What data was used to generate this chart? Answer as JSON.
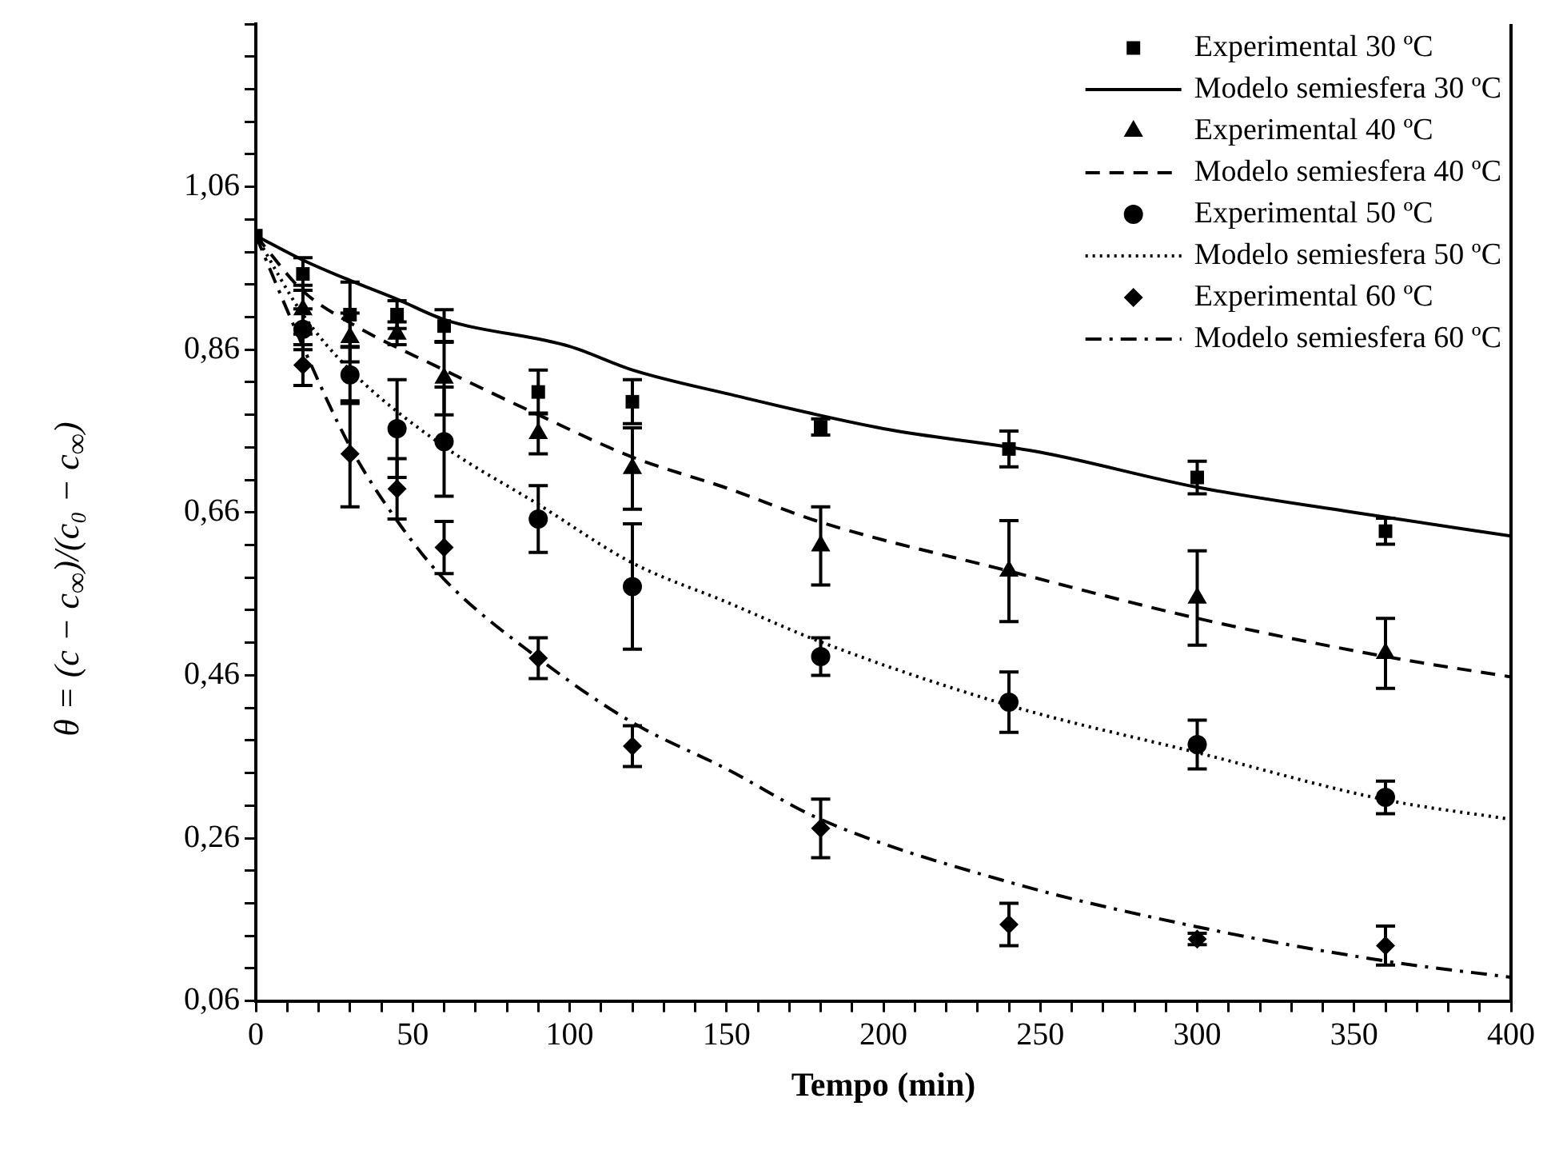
{
  "chart_data": {
    "type": "scatter",
    "xlabel": "Tempo (min)",
    "ylabel": "θ = (c − c$_{∞}$)/(c₀ − c$_{∞}$)",
    "xlim": [
      0,
      400
    ],
    "ylim": [
      0.06,
      1.26
    ],
    "xticks": [
      0,
      {
        "value": 10,
        "label": null
      },
      {
        "value": 20,
        "label": null
      },
      {
        "value": 30,
        "label": null
      },
      {
        "value": 40,
        "label": null
      },
      50,
      {
        "value": 60,
        "label": null
      },
      {
        "value": 70,
        "label": null
      },
      {
        "value": 80,
        "label": null
      },
      {
        "value": 90,
        "label": null
      },
      100,
      {
        "value": 110,
        "label": null
      },
      {
        "value": 120,
        "label": null
      },
      {
        "value": 130,
        "label": null
      },
      {
        "value": 140,
        "label": null
      },
      150,
      {
        "value": 160,
        "label": null
      },
      {
        "value": 170,
        "label": null
      },
      {
        "value": 180,
        "label": null
      },
      {
        "value": 190,
        "label": null
      },
      200,
      {
        "value": 210,
        "label": null
      },
      {
        "value": 220,
        "label": null
      },
      {
        "value": 230,
        "label": null
      },
      {
        "value": 240,
        "label": null
      },
      250,
      {
        "value": 260,
        "label": null
      },
      {
        "value": 270,
        "label": null
      },
      {
        "value": 280,
        "label": null
      },
      {
        "value": 290,
        "label": null
      },
      300,
      {
        "value": 310,
        "label": null
      },
      {
        "value": 320,
        "label": null
      },
      {
        "value": 330,
        "label": null
      },
      {
        "value": 340,
        "label": null
      },
      350,
      {
        "value": 360,
        "label": null
      },
      {
        "value": 370,
        "label": null
      },
      {
        "value": 380,
        "label": null
      },
      {
        "value": 390,
        "label": null
      },
      400
    ],
    "yticks": [
      {
        "value": 0.06,
        "label": "0,06"
      },
      {
        "value": 0.1,
        "label": null
      },
      {
        "value": 0.14,
        "label": null
      },
      {
        "value": 0.18,
        "label": null
      },
      {
        "value": 0.22,
        "label": null
      },
      {
        "value": 0.26,
        "label": "0,26"
      },
      {
        "value": 0.3,
        "label": null
      },
      {
        "value": 0.34,
        "label": null
      },
      {
        "value": 0.38,
        "label": null
      },
      {
        "value": 0.42,
        "label": null
      },
      {
        "value": 0.46,
        "label": "0,46"
      },
      {
        "value": 0.5,
        "label": null
      },
      {
        "value": 0.54,
        "label": null
      },
      {
        "value": 0.58,
        "label": null
      },
      {
        "value": 0.62,
        "label": null
      },
      {
        "value": 0.66,
        "label": "0,66"
      },
      {
        "value": 0.7,
        "label": null
      },
      {
        "value": 0.74,
        "label": null
      },
      {
        "value": 0.78,
        "label": null
      },
      {
        "value": 0.82,
        "label": null
      },
      {
        "value": 0.86,
        "label": "0,86"
      },
      {
        "value": 0.9,
        "label": null
      },
      {
        "value": 0.94,
        "label": null
      },
      {
        "value": 0.98,
        "label": null
      },
      {
        "value": 1.02,
        "label": null
      },
      {
        "value": 1.06,
        "label": "1,06"
      },
      {
        "value": 1.1,
        "label": null
      },
      {
        "value": 1.14,
        "label": null
      },
      {
        "value": 1.18,
        "label": null
      },
      {
        "value": 1.22,
        "label": null
      },
      {
        "value": 1.26,
        "label": null
      }
    ],
    "grid": false,
    "legend": "top right",
    "series": [
      {
        "name": "Experimental 30 ºC",
        "marker": "square",
        "color": "#000000",
        "x": [
          0,
          15,
          30,
          45,
          60,
          90,
          120,
          180,
          240,
          300,
          360
        ],
        "values": [
          1.0,
          0.953,
          0.903,
          0.903,
          0.889,
          0.808,
          0.796,
          0.765,
          0.738,
          0.703,
          0.637
        ],
        "errors": [
          null,
          0.02,
          0.04,
          0.017,
          0.02,
          0.027,
          0.027,
          0.01,
          0.022,
          0.02,
          0.016
        ]
      },
      {
        "name": "Modelo semiesfera 30 ºC",
        "type": "line",
        "marker": "none",
        "line_style": "solid",
        "color": "#000000",
        "x": [
          0,
          15,
          30,
          45,
          60,
          100,
          120,
          150,
          200,
          250,
          300,
          350,
          400
        ],
        "values": [
          1.0,
          0.97,
          0.945,
          0.922,
          0.897,
          0.864,
          0.835,
          0.806,
          0.763,
          0.734,
          0.691,
          0.66,
          0.631
        ]
      },
      {
        "name": "Experimental 40 ºC",
        "marker": "triangle",
        "color": "#000000",
        "x": [
          15,
          30,
          45,
          60,
          90,
          120,
          180,
          240,
          300,
          360
        ],
        "values": [
          0.909,
          0.875,
          0.879,
          0.825,
          0.757,
          0.714,
          0.619,
          0.588,
          0.555,
          0.487
        ],
        "errors": [
          0.03,
          0.03,
          [
            0.866,
            0.894
          ],
          0.045,
          0.025,
          0.05,
          0.048,
          0.062,
          0.058,
          0.043
        ]
      },
      {
        "name": "Modelo semiesfera 40 ºC",
        "type": "line",
        "marker": "none",
        "line_style": "dashed",
        "color": "#000000",
        "x": [
          0,
          15,
          30,
          60,
          90,
          120,
          150,
          180,
          240,
          300,
          360,
          400
        ],
        "values": [
          1.0,
          0.932,
          0.893,
          0.835,
          0.78,
          0.728,
          0.69,
          0.648,
          0.588,
          0.53,
          0.483,
          0.458
        ]
      },
      {
        "name": "Experimental 50 ºC",
        "marker": "circle",
        "color": "#000000",
        "x": [
          15,
          30,
          45,
          60,
          90,
          120,
          180,
          240,
          300,
          360
        ],
        "values": [
          0.885,
          0.829,
          0.763,
          0.747,
          0.652,
          0.569,
          0.483,
          0.427,
          0.375,
          0.31
        ],
        "errors": [
          0.025,
          0.035,
          0.06,
          0.067,
          0.041,
          0.077,
          0.023,
          0.037,
          0.03,
          0.02
        ]
      },
      {
        "name": "Modelo semiesfera 50 ºC",
        "type": "line",
        "marker": "none",
        "line_style": "dotted",
        "color": "#000000",
        "x": [
          0,
          15,
          30,
          60,
          90,
          120,
          150,
          180,
          240,
          300,
          360,
          400
        ],
        "values": [
          1.0,
          0.903,
          0.835,
          0.741,
          0.67,
          0.598,
          0.55,
          0.501,
          0.423,
          0.365,
          0.307,
          0.283
        ]
      },
      {
        "name": "Experimental 60 ºC",
        "marker": "diamond",
        "color": "#000000",
        "x": [
          15,
          30,
          45,
          60,
          90,
          120,
          180,
          240,
          300,
          360
        ],
        "values": [
          0.841,
          0.732,
          0.689,
          0.617,
          0.481,
          0.373,
          0.272,
          0.154,
          0.136,
          0.128
        ],
        "errors": [
          0.025,
          0.065,
          0.037,
          0.032,
          0.025,
          0.025,
          0.036,
          0.026,
          0.007,
          0.024
        ]
      },
      {
        "name": "Modelo semiesfera 60 ºC",
        "type": "line",
        "marker": "none",
        "line_style": "dashdot",
        "color": "#000000",
        "x": [
          0,
          15,
          30,
          45,
          60,
          90,
          120,
          150,
          180,
          240,
          300,
          360,
          400
        ],
        "values": [
          1.0,
          0.864,
          0.741,
          0.65,
          0.578,
          0.481,
          0.402,
          0.345,
          0.283,
          0.206,
          0.151,
          0.109,
          0.089
        ]
      }
    ]
  }
}
